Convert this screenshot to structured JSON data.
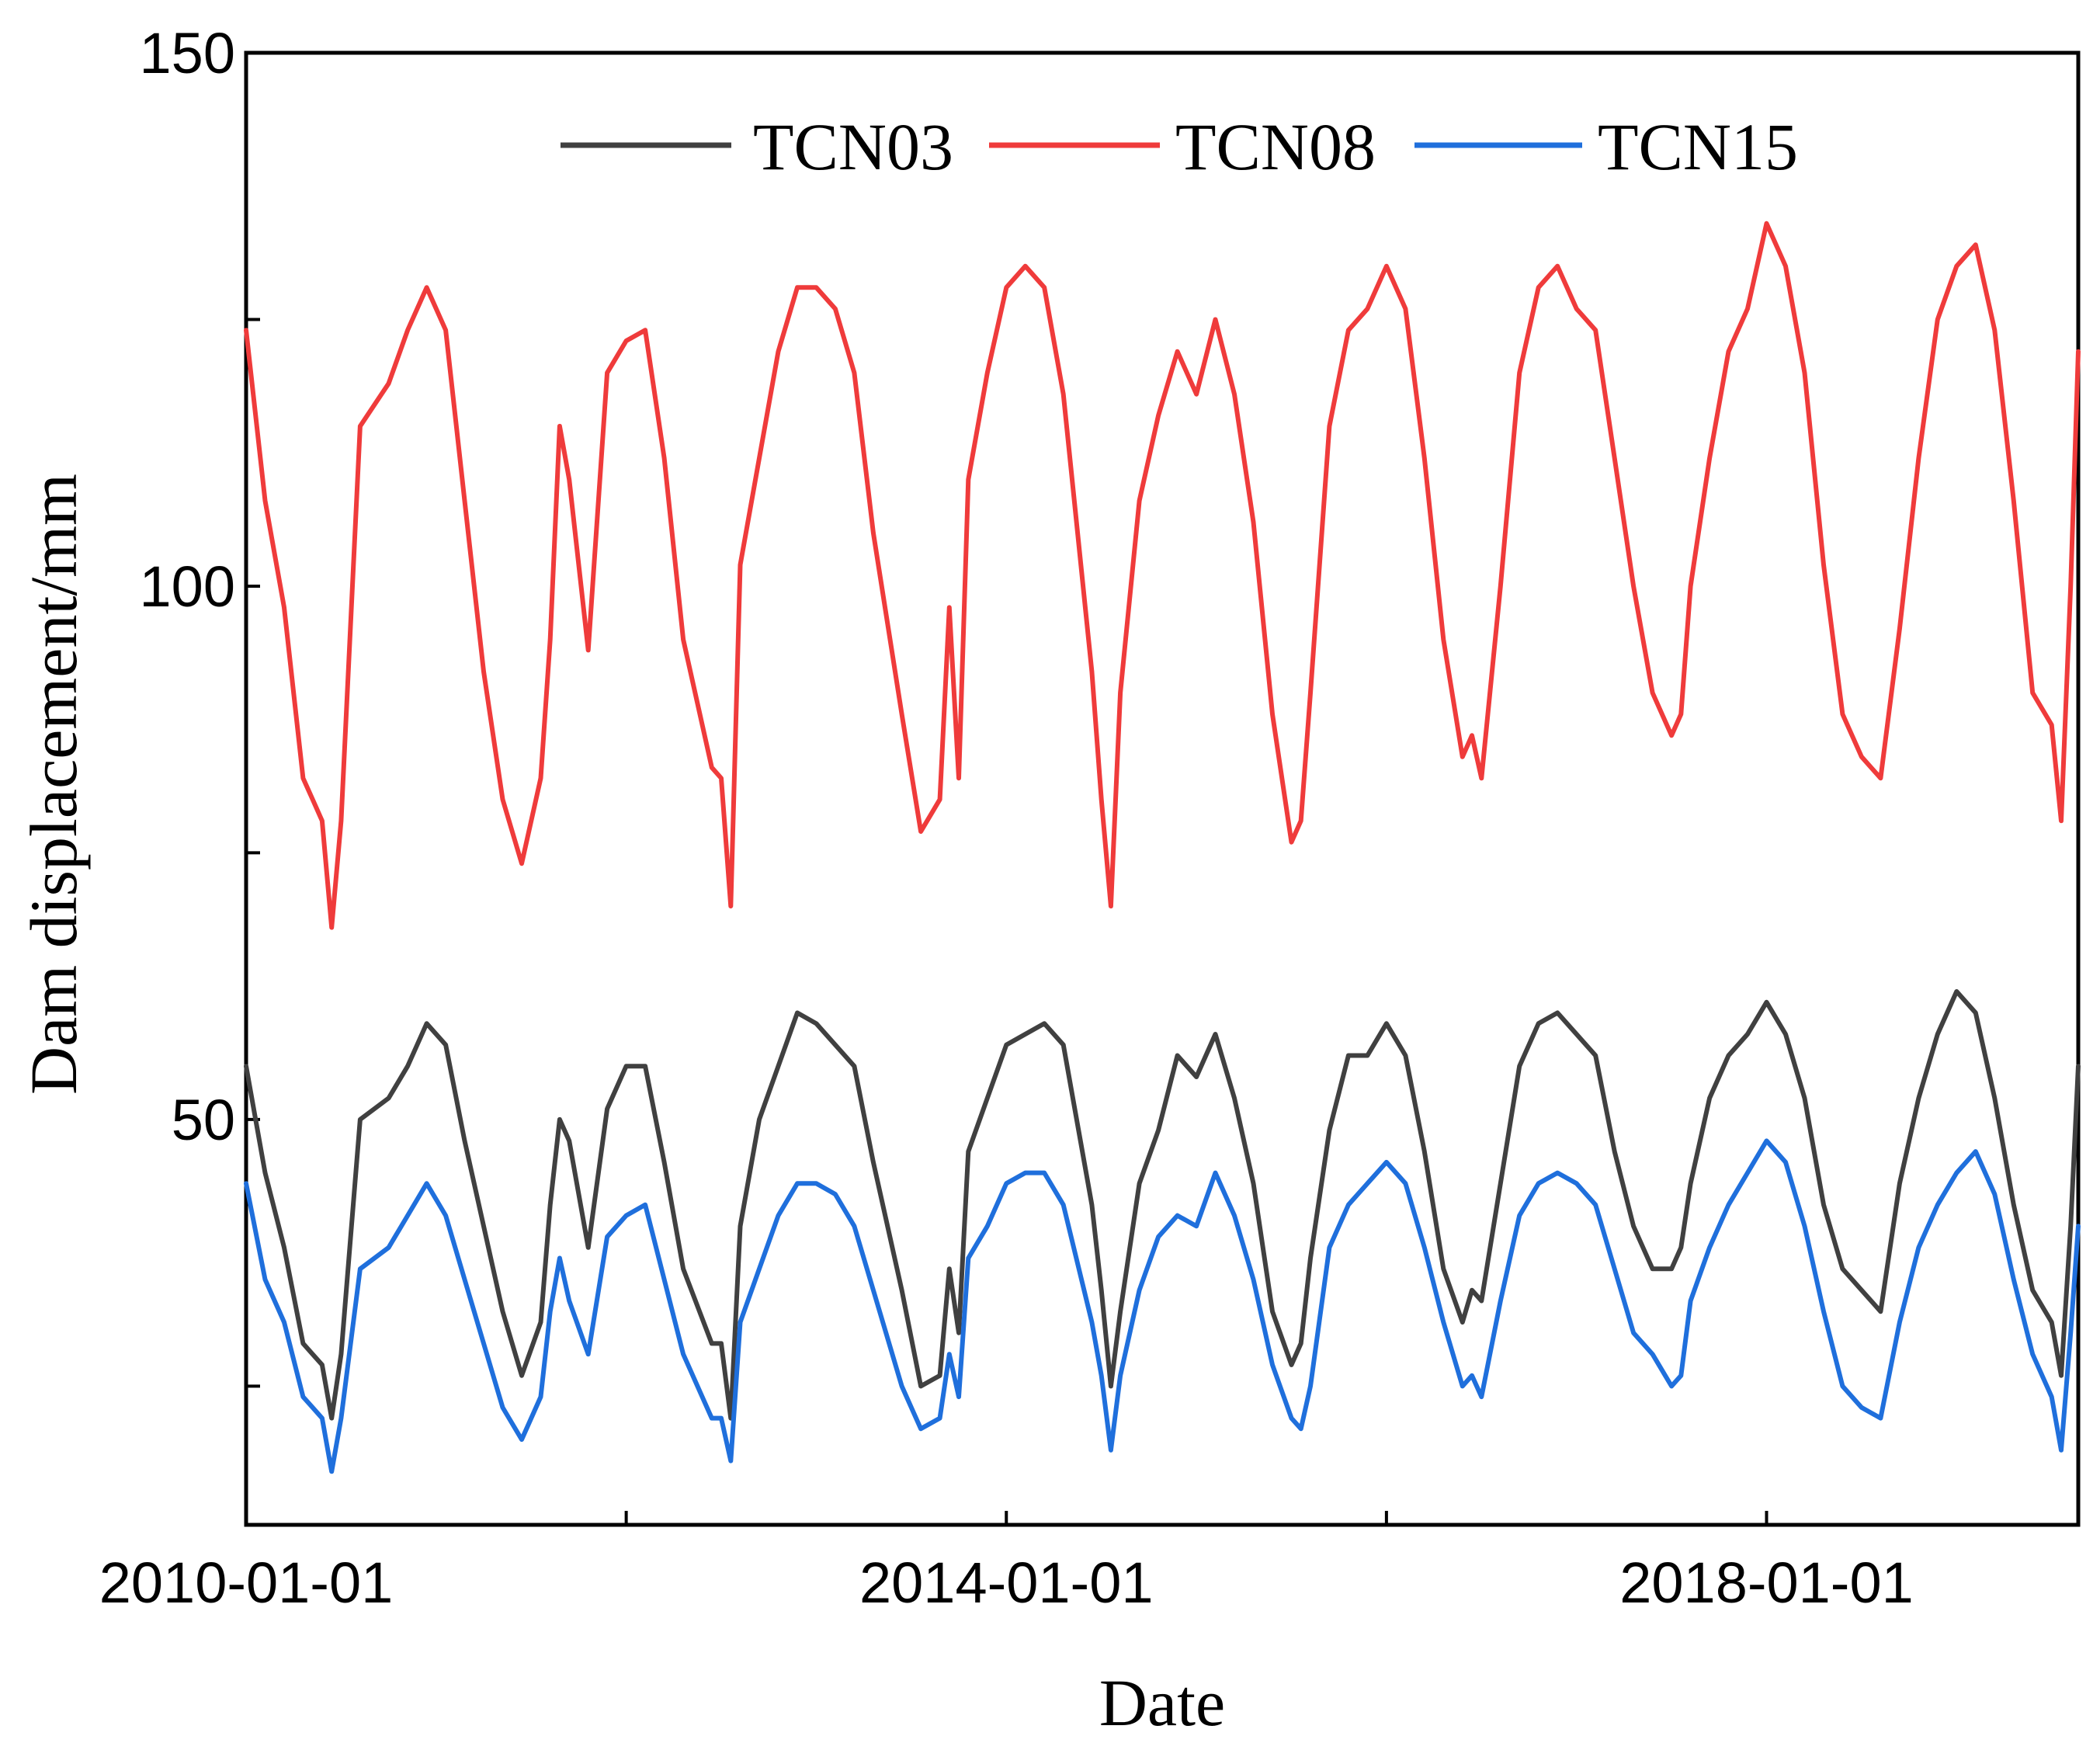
{
  "chart_data": {
    "type": "line",
    "title": "",
    "xlabel": "Date",
    "ylabel": "Dam displacement/mm",
    "xlim": [
      2010.0,
      2019.64
    ],
    "ylim": [
      12,
      150
    ],
    "x_ticks": [
      {
        "value": 2010,
        "label": "2010-01-01"
      },
      {
        "value": 2012,
        "label": ""
      },
      {
        "value": 2014,
        "label": "2014-01-01"
      },
      {
        "value": 2016,
        "label": ""
      },
      {
        "value": 2018,
        "label": "2018-01-01"
      }
    ],
    "y_ticks": [
      {
        "value": 25,
        "label": ""
      },
      {
        "value": 50,
        "label": "50"
      },
      {
        "value": 75,
        "label": ""
      },
      {
        "value": 100,
        "label": "100"
      },
      {
        "value": 125,
        "label": ""
      },
      {
        "value": 150,
        "label": "150"
      }
    ],
    "legend": {
      "position": "top-center",
      "orientation": "horizontal"
    },
    "series": [
      {
        "name": "TCN03",
        "color": "#404040",
        "x": [
          2010.0,
          2010.1,
          2010.2,
          2010.3,
          2010.35,
          2010.4,
          2010.45,
          2010.5,
          2010.6,
          2010.75,
          2010.85,
          2010.95,
          2011.05,
          2011.15,
          2011.25,
          2011.35,
          2011.45,
          2011.55,
          2011.6,
          2011.65,
          2011.7,
          2011.8,
          2011.9,
          2012.0,
          2012.1,
          2012.2,
          2012.3,
          2012.45,
          2012.5,
          2012.55,
          2012.6,
          2012.7,
          2012.8,
          2012.9,
          2013.0,
          2013.1,
          2013.2,
          2013.3,
          2013.45,
          2013.55,
          2013.65,
          2013.7,
          2013.75,
          2013.8,
          2013.9,
          2014.0,
          2014.1,
          2014.2,
          2014.3,
          2014.45,
          2014.5,
          2014.55,
          2014.6,
          2014.7,
          2014.8,
          2014.9,
          2015.0,
          2015.1,
          2015.2,
          2015.3,
          2015.4,
          2015.5,
          2015.55,
          2015.6,
          2015.7,
          2015.8,
          2015.9,
          2016.0,
          2016.1,
          2016.2,
          2016.3,
          2016.4,
          2016.45,
          2016.5,
          2016.6,
          2016.7,
          2016.8,
          2016.9,
          2017.0,
          2017.1,
          2017.2,
          2017.3,
          2017.4,
          2017.5,
          2017.55,
          2017.6,
          2017.7,
          2017.8,
          2017.9,
          2018.0,
          2018.1,
          2018.2,
          2018.3,
          2018.4,
          2018.5,
          2018.6,
          2018.7,
          2018.8,
          2018.9,
          2019.0,
          2019.1,
          2019.2,
          2019.3,
          2019.4,
          2019.5,
          2019.55,
          2019.6,
          2019.64
        ],
        "y": [
          55,
          45,
          38,
          29,
          28,
          27,
          22,
          28,
          50,
          52,
          55,
          59,
          57,
          48,
          40,
          32,
          26,
          31,
          42,
          50,
          48,
          38,
          51,
          55,
          55,
          46,
          36,
          29,
          29,
          22,
          40,
          50,
          55,
          60,
          59,
          57,
          55,
          46,
          34,
          25,
          26,
          36,
          30,
          47,
          52,
          57,
          58,
          59,
          57,
          42,
          34,
          25,
          32,
          44,
          49,
          56,
          54,
          58,
          52,
          44,
          32,
          27,
          29,
          37,
          49,
          56,
          56,
          59,
          56,
          47,
          36,
          31,
          34,
          33,
          44,
          55,
          59,
          60,
          58,
          56,
          47,
          40,
          36,
          36,
          38,
          44,
          52,
          56,
          58,
          61,
          58,
          52,
          42,
          36,
          34,
          32,
          44,
          52,
          58,
          62,
          60,
          52,
          42,
          34,
          31,
          26,
          40,
          55
        ]
      },
      {
        "name": "TCN08",
        "color": "#ef3b3b",
        "x": [
          2010.0,
          2010.1,
          2010.2,
          2010.3,
          2010.35,
          2010.4,
          2010.45,
          2010.5,
          2010.6,
          2010.75,
          2010.85,
          2010.95,
          2011.05,
          2011.15,
          2011.25,
          2011.35,
          2011.45,
          2011.55,
          2011.6,
          2011.65,
          2011.7,
          2011.8,
          2011.9,
          2012.0,
          2012.1,
          2012.2,
          2012.3,
          2012.45,
          2012.5,
          2012.55,
          2012.6,
          2012.7,
          2012.8,
          2012.9,
          2013.0,
          2013.1,
          2013.2,
          2013.3,
          2013.45,
          2013.55,
          2013.65,
          2013.7,
          2013.75,
          2013.8,
          2013.9,
          2014.0,
          2014.1,
          2014.2,
          2014.3,
          2014.45,
          2014.5,
          2014.55,
          2014.6,
          2014.7,
          2014.8,
          2014.9,
          2015.0,
          2015.1,
          2015.2,
          2015.3,
          2015.4,
          2015.5,
          2015.55,
          2015.6,
          2015.7,
          2015.8,
          2015.9,
          2016.0,
          2016.1,
          2016.2,
          2016.3,
          2016.4,
          2016.45,
          2016.5,
          2016.6,
          2016.7,
          2016.8,
          2016.9,
          2017.0,
          2017.1,
          2017.2,
          2017.3,
          2017.4,
          2017.5,
          2017.55,
          2017.6,
          2017.7,
          2017.8,
          2017.9,
          2018.0,
          2018.1,
          2018.2,
          2018.3,
          2018.4,
          2018.5,
          2018.6,
          2018.7,
          2018.8,
          2018.9,
          2019.0,
          2019.1,
          2019.2,
          2019.3,
          2019.4,
          2019.5,
          2019.55,
          2019.6,
          2019.64
        ],
        "y": [
          124,
          108,
          98,
          82,
          80,
          78,
          68,
          78,
          115,
          119,
          124,
          128,
          124,
          108,
          92,
          80,
          74,
          82,
          95,
          115,
          110,
          94,
          120,
          123,
          124,
          112,
          95,
          83,
          82,
          70,
          102,
          112,
          122,
          128,
          128,
          126,
          120,
          105,
          88,
          77,
          80,
          98,
          82,
          110,
          120,
          128,
          130,
          128,
          118,
          92,
          80,
          70,
          90,
          108,
          116,
          122,
          118,
          125,
          118,
          106,
          88,
          76,
          78,
          90,
          115,
          124,
          126,
          130,
          126,
          112,
          95,
          84,
          86,
          82,
          100,
          120,
          128,
          130,
          126,
          124,
          112,
          100,
          90,
          86,
          88,
          100,
          112,
          122,
          126,
          134,
          130,
          120,
          102,
          88,
          84,
          82,
          96,
          112,
          125,
          130,
          132,
          124,
          108,
          90,
          87,
          78,
          100,
          122
        ]
      },
      {
        "name": "TCN15",
        "color": "#1f6fdc",
        "x": [
          2010.0,
          2010.1,
          2010.2,
          2010.3,
          2010.35,
          2010.4,
          2010.45,
          2010.5,
          2010.6,
          2010.75,
          2010.85,
          2010.95,
          2011.05,
          2011.15,
          2011.25,
          2011.35,
          2011.45,
          2011.55,
          2011.6,
          2011.65,
          2011.7,
          2011.8,
          2011.9,
          2012.0,
          2012.1,
          2012.2,
          2012.3,
          2012.45,
          2012.5,
          2012.55,
          2012.6,
          2012.7,
          2012.8,
          2012.9,
          2013.0,
          2013.1,
          2013.2,
          2013.3,
          2013.45,
          2013.55,
          2013.65,
          2013.7,
          2013.75,
          2013.8,
          2013.9,
          2014.0,
          2014.1,
          2014.2,
          2014.3,
          2014.45,
          2014.5,
          2014.55,
          2014.6,
          2014.7,
          2014.8,
          2014.9,
          2015.0,
          2015.1,
          2015.2,
          2015.3,
          2015.4,
          2015.5,
          2015.55,
          2015.6,
          2015.7,
          2015.8,
          2015.9,
          2016.0,
          2016.1,
          2016.2,
          2016.3,
          2016.4,
          2016.45,
          2016.5,
          2016.6,
          2016.7,
          2016.8,
          2016.9,
          2017.0,
          2017.1,
          2017.2,
          2017.3,
          2017.4,
          2017.5,
          2017.55,
          2017.6,
          2017.7,
          2017.8,
          2017.9,
          2018.0,
          2018.1,
          2018.2,
          2018.3,
          2018.4,
          2018.5,
          2018.6,
          2018.7,
          2018.8,
          2018.9,
          2019.0,
          2019.1,
          2019.2,
          2019.3,
          2019.4,
          2019.5,
          2019.55,
          2019.6,
          2019.64
        ],
        "y": [
          44,
          35,
          31,
          24,
          23,
          22,
          17,
          22,
          36,
          38,
          41,
          44,
          41,
          35,
          29,
          23,
          20,
          24,
          32,
          37,
          33,
          28,
          39,
          41,
          42,
          35,
          28,
          22,
          22,
          18,
          31,
          36,
          41,
          44,
          44,
          43,
          40,
          34,
          25,
          21,
          22,
          28,
          24,
          37,
          40,
          44,
          45,
          45,
          42,
          31,
          26,
          19,
          26,
          34,
          39,
          41,
          40,
          45,
          41,
          35,
          27,
          22,
          21,
          25,
          38,
          42,
          44,
          46,
          44,
          38,
          31,
          25,
          26,
          24,
          33,
          41,
          44,
          45,
          44,
          42,
          36,
          30,
          28,
          25,
          26,
          33,
          38,
          42,
          45,
          48,
          46,
          40,
          32,
          25,
          23,
          22,
          31,
          38,
          42,
          45,
          47,
          43,
          35,
          28,
          24,
          19,
          30,
          40
        ]
      }
    ]
  }
}
